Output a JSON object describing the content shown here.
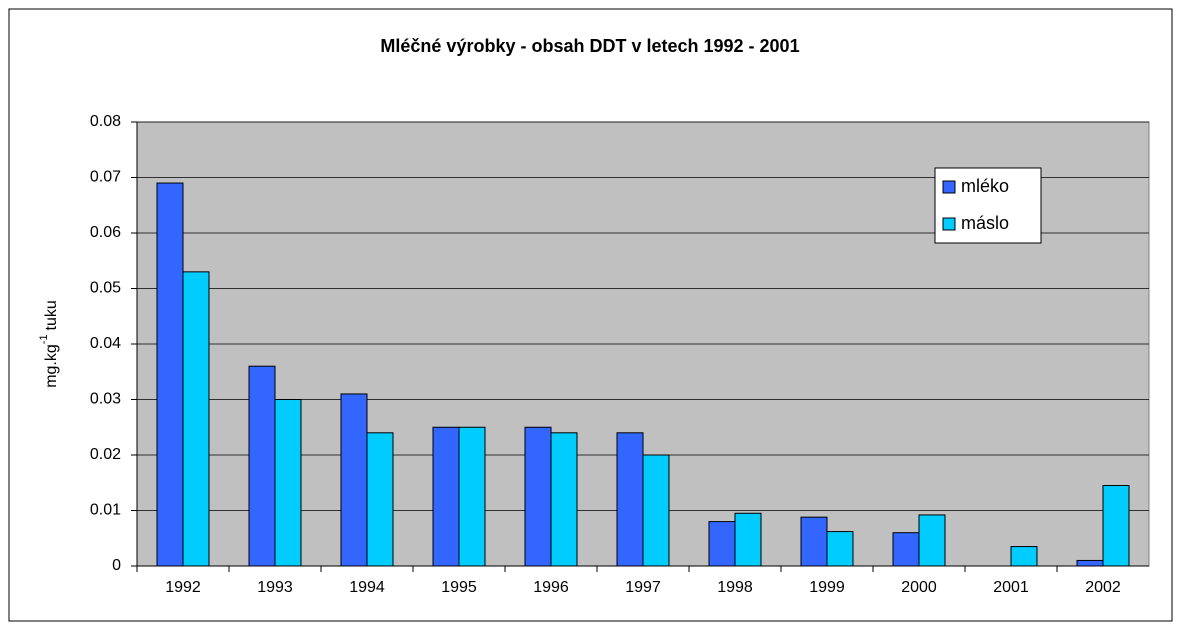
{
  "chart_data": {
    "type": "bar",
    "title": "Mléčné výrobky - obsah DDT v letech 1992 - 2001",
    "y_label": [
      "mg.kg",
      "-1",
      "tuku"
    ],
    "categories": [
      "1992",
      "1993",
      "1994",
      "1995",
      "1996",
      "1997",
      "1998",
      "1999",
      "2000",
      "2001",
      "2002"
    ],
    "series": [
      {
        "name": "mléko",
        "color": "#3366ff",
        "values": [
          0.069,
          0.036,
          0.031,
          0.025,
          0.025,
          0.024,
          0.008,
          0.0088,
          0.006,
          0,
          0.001
        ]
      },
      {
        "name": "máslo",
        "color": "#00ccff",
        "values": [
          0.053,
          0.03,
          0.024,
          0.025,
          0.024,
          0.02,
          0.0095,
          0.0062,
          0.0092,
          0.0035,
          0.0145
        ]
      }
    ],
    "ylim": [
      0,
      0.08
    ],
    "yticks": [
      0,
      0.01,
      0.02,
      0.03,
      0.04,
      0.05,
      0.06,
      0.07,
      0.08
    ],
    "grid": true,
    "legend": "upper right"
  }
}
